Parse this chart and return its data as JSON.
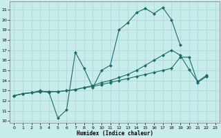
{
  "xlabel": "Humidex (Indice chaleur)",
  "bg_color": "#c8ecea",
  "line_color": "#1a6b6a",
  "grid_color": "#a0cece",
  "xlim": [
    -0.5,
    23.5
  ],
  "ylim": [
    9.8,
    21.8
  ],
  "xticks": [
    0,
    1,
    2,
    3,
    4,
    5,
    6,
    7,
    8,
    9,
    10,
    11,
    12,
    13,
    14,
    15,
    16,
    17,
    18,
    19,
    20,
    21,
    22,
    23
  ],
  "yticks": [
    10,
    11,
    12,
    13,
    14,
    15,
    16,
    17,
    18,
    19,
    20,
    21
  ],
  "curve1_x": [
    0,
    1,
    2,
    3,
    4,
    5,
    6,
    7,
    8,
    9,
    10,
    11,
    12,
    13,
    14,
    15,
    16,
    17,
    18,
    19
  ],
  "curve1_y": [
    12.5,
    12.7,
    12.8,
    13.0,
    12.8,
    10.3,
    11.1,
    16.8,
    15.2,
    13.3,
    15.0,
    15.5,
    19.0,
    19.7,
    20.7,
    21.1,
    20.6,
    21.2,
    20.0,
    17.5
  ],
  "curve2_x": [
    0,
    1,
    2,
    3,
    4,
    5,
    6,
    7,
    8,
    9,
    10,
    11,
    12,
    13,
    14,
    15,
    16,
    17,
    18,
    19,
    20,
    21,
    22
  ],
  "curve2_y": [
    12.5,
    12.7,
    12.8,
    12.9,
    12.9,
    12.9,
    13.0,
    13.1,
    13.3,
    13.5,
    13.8,
    14.0,
    14.3,
    14.6,
    15.0,
    15.5,
    16.0,
    16.5,
    17.0,
    16.5,
    15.1,
    13.9,
    14.5
  ],
  "curve3_x": [
    0,
    1,
    2,
    3,
    4,
    5,
    6,
    7,
    8,
    9,
    10,
    11,
    12,
    13,
    14,
    15,
    16,
    17,
    18,
    19,
    20,
    21,
    22
  ],
  "curve3_y": [
    12.5,
    12.7,
    12.8,
    12.9,
    12.9,
    12.9,
    13.0,
    13.1,
    13.3,
    13.4,
    13.6,
    13.8,
    14.0,
    14.2,
    14.4,
    14.6,
    14.8,
    15.0,
    15.2,
    16.3,
    16.3,
    13.8,
    14.4
  ]
}
